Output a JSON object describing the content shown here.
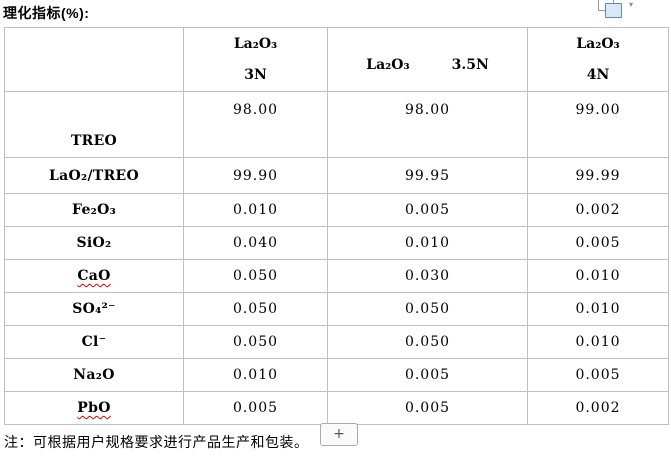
{
  "title": "理化指标(%):",
  "controls": {
    "paste_caret": "▾",
    "add_button_label": "+"
  },
  "table": {
    "columns": [
      {
        "formula": "",
        "grade": ""
      },
      {
        "formula": "La₂O₃",
        "grade": "3N"
      },
      {
        "formula": "La₂O₃",
        "grade": "3.5N"
      },
      {
        "formula": "La₂O₃",
        "grade": "4N"
      }
    ],
    "rows": [
      {
        "label": "TREO",
        "values": [
          "98.00",
          "98.00",
          "99.00"
        ]
      },
      {
        "label": "LaO₂/TREO",
        "values": [
          "99.90",
          "99.95",
          "99.99"
        ]
      },
      {
        "label": "Fe₂O₃",
        "values": [
          "0.010",
          "0.005",
          "0.002"
        ]
      },
      {
        "label": "SiO₂",
        "values": [
          "0.040",
          "0.010",
          "0.005"
        ]
      },
      {
        "label": "CaO",
        "values": [
          "0.050",
          "0.030",
          "0.010"
        ]
      },
      {
        "label": "SO₄²⁻",
        "values": [
          "0.050",
          "0.050",
          "0.010"
        ]
      },
      {
        "label": "Cl⁻",
        "values": [
          "0.050",
          "0.050",
          "0.010"
        ]
      },
      {
        "label": "Na₂O",
        "values": [
          "0.010",
          "0.005",
          "0.005"
        ]
      },
      {
        "label": "PbO",
        "values": [
          "0.005",
          "0.005",
          "0.002"
        ]
      }
    ]
  },
  "note": "注：可根据用户规格要求进行产品生产和包装。"
}
